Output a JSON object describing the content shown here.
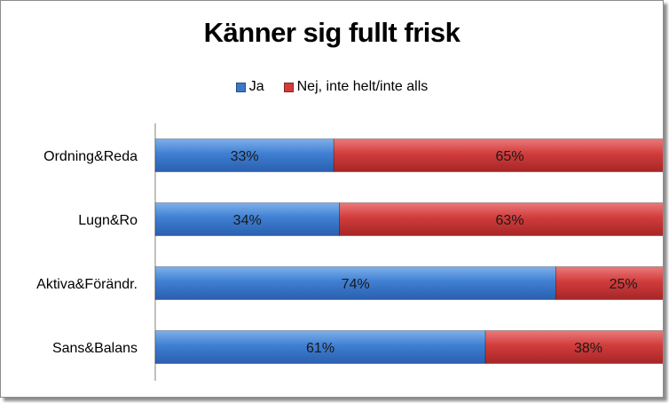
{
  "chart_data": {
    "type": "bar",
    "orientation": "horizontal",
    "stacked": true,
    "title": "Känner sig fullt frisk",
    "categories": [
      "Ordning&Reda",
      "Lugn&Ro",
      "Aktiva&Förändr.",
      "Sans&Balans"
    ],
    "series": [
      {
        "name": "Ja",
        "color": "#3c78c8",
        "values": [
          33,
          34,
          74,
          61
        ],
        "labels": [
          "33%",
          "34%",
          "74%",
          "61%"
        ]
      },
      {
        "name": "Nej, inte helt/inte alls",
        "color": "#d23c3c",
        "values": [
          65,
          63,
          25,
          38
        ],
        "labels": [
          "65%",
          "63%",
          "25%",
          "38%"
        ]
      }
    ],
    "xlim": [
      0,
      100
    ],
    "legend_position": "top",
    "grid": false
  }
}
